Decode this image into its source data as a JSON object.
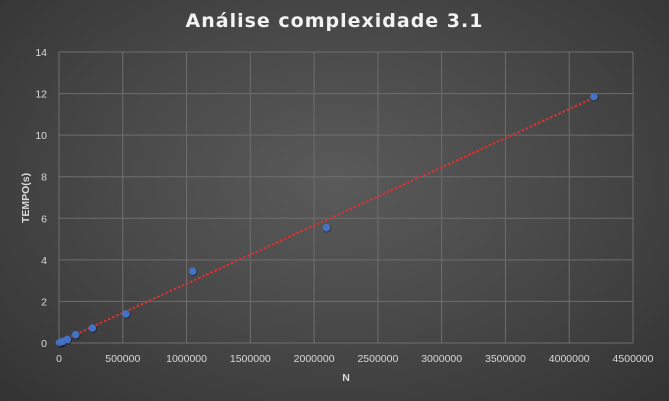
{
  "chart_data": {
    "type": "scatter",
    "title": "Análise complexidade 3.1",
    "xlabel": "N",
    "ylabel": "TEMPO(s)",
    "xlim": [
      0,
      4500000
    ],
    "ylim": [
      0,
      14
    ],
    "x_ticks": [
      "0",
      "500000",
      "1000000",
      "1500000",
      "2000000",
      "2500000",
      "3000000",
      "3500000",
      "4000000",
      "4500000"
    ],
    "y_ticks": [
      "0",
      "2",
      "4",
      "6",
      "8",
      "10",
      "12",
      "14"
    ],
    "grid": true,
    "legend": "none",
    "series": [
      {
        "points": [
          {
            "x": 4096,
            "y": 0.01
          },
          {
            "x": 8192,
            "y": 0.02
          },
          {
            "x": 16384,
            "y": 0.04
          },
          {
            "x": 32768,
            "y": 0.08
          },
          {
            "x": 65536,
            "y": 0.17
          },
          {
            "x": 131072,
            "y": 0.4
          },
          {
            "x": 262144,
            "y": 0.72
          },
          {
            "x": 524288,
            "y": 1.4
          },
          {
            "x": 1048576,
            "y": 3.45
          },
          {
            "x": 2097152,
            "y": 5.55
          },
          {
            "x": 4194304,
            "y": 11.85
          }
        ],
        "color": "#4472c4"
      }
    ],
    "trendline": {
      "type": "linear",
      "style": "dotted",
      "color": "#e03030",
      "x_range": [
        0,
        4194304
      ],
      "y_range": [
        0.05,
        11.8
      ]
    }
  },
  "colors": {
    "grid": "#6e6e6e",
    "tick_text": "#d9d9d9",
    "marker": "#4472c4",
    "trendline": "#e03030"
  }
}
